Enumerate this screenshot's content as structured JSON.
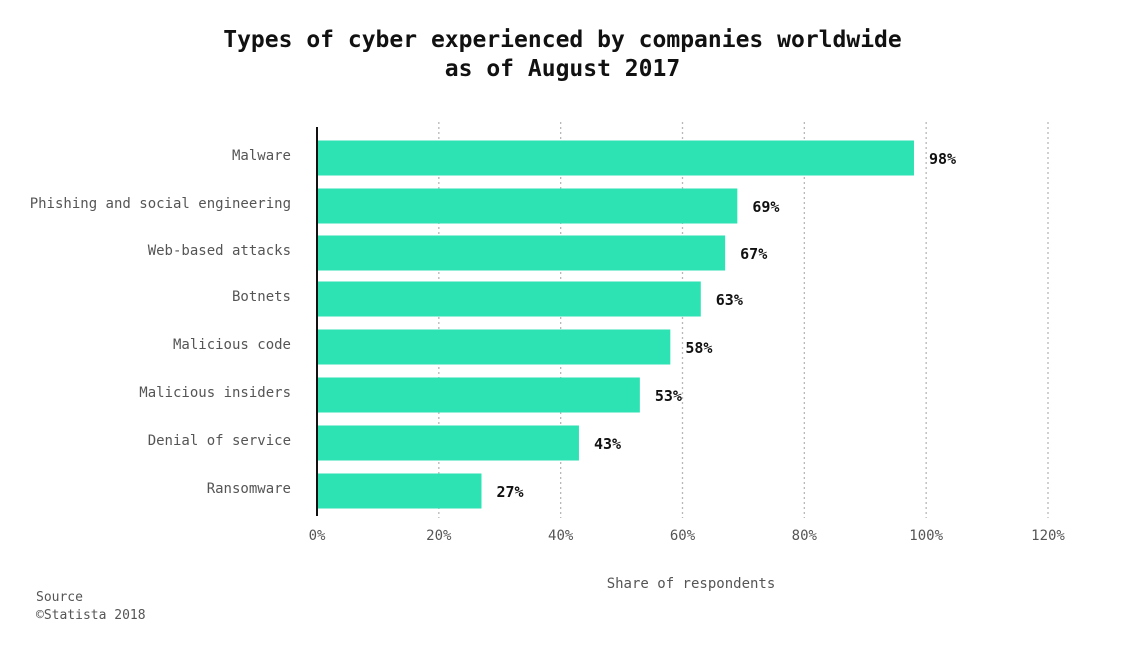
{
  "title": {
    "line1": "Types of cyber experienced by companies worldwide",
    "line2": "as of August 2017"
  },
  "chart_data": {
    "type": "bar",
    "orientation": "horizontal",
    "categories": [
      "Malware",
      "Phishing and social engineering",
      "Web-based attacks",
      "Botnets",
      "Malicious code",
      "Malicious insiders",
      "Denial of service",
      "Ransomware"
    ],
    "values": [
      98,
      69,
      67,
      63,
      58,
      53,
      43,
      27
    ],
    "value_labels": [
      "98%",
      "69%",
      "67%",
      "63%",
      "58%",
      "53%",
      "43%",
      "27%"
    ],
    "xlabel": "Share of respondents",
    "ylabel": "",
    "xlim": [
      0,
      120
    ],
    "x_ticks": [
      0,
      20,
      40,
      60,
      80,
      100,
      120
    ],
    "x_tick_labels": [
      "0%",
      "20%",
      "40%",
      "60%",
      "80%",
      "100%",
      "120%"
    ],
    "grid": true,
    "bar_color": "#2de2b3"
  },
  "footer": {
    "source": "Source",
    "copyright": "©Statista 2018"
  }
}
